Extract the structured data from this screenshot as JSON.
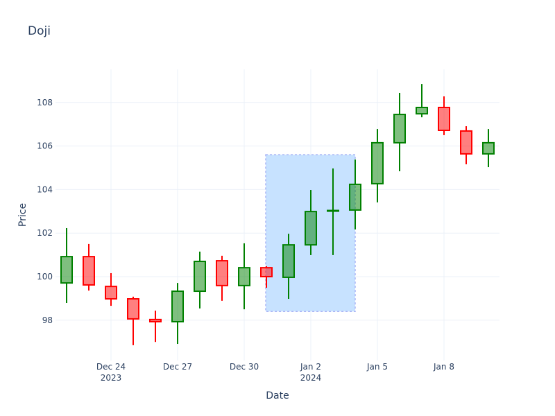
{
  "chart_data": {
    "type": "candlestick",
    "title": "Doji",
    "xlabel": "Date",
    "ylabel": "Price",
    "ylim": [
      96.4,
      109.6
    ],
    "yticks": [
      98,
      100,
      102,
      104,
      106,
      108
    ],
    "xticks": [
      {
        "date": "2023-12-24",
        "label": "Dec 24",
        "sublabel": "2023"
      },
      {
        "date": "2023-12-27",
        "label": "Dec 27",
        "sublabel": ""
      },
      {
        "date": "2023-12-30",
        "label": "Dec 30",
        "sublabel": ""
      },
      {
        "date": "2024-01-02",
        "label": "Jan 2",
        "sublabel": "2024"
      },
      {
        "date": "2024-01-05",
        "label": "Jan 5",
        "sublabel": ""
      },
      {
        "date": "2024-01-08",
        "label": "Jan 8",
        "sublabel": ""
      }
    ],
    "grid": true,
    "legend": false,
    "increasing_color": "#008000",
    "decreasing_color": "#ff0000",
    "candles": [
      {
        "date": "2023-12-22",
        "open": 99.71,
        "high": 102.23,
        "low": 98.79,
        "close": 100.92
      },
      {
        "date": "2023-12-23",
        "open": 100.92,
        "high": 101.5,
        "low": 99.36,
        "close": 99.62
      },
      {
        "date": "2023-12-24",
        "open": 99.55,
        "high": 100.16,
        "low": 98.66,
        "close": 98.98
      },
      {
        "date": "2023-12-25",
        "open": 98.98,
        "high": 99.08,
        "low": 96.85,
        "close": 98.06
      },
      {
        "date": "2023-12-26",
        "open": 98.03,
        "high": 98.44,
        "low": 97.0,
        "close": 97.93
      },
      {
        "date": "2023-12-27",
        "open": 97.93,
        "high": 99.71,
        "low": 96.91,
        "close": 99.33
      },
      {
        "date": "2023-12-28",
        "open": 99.33,
        "high": 101.15,
        "low": 98.54,
        "close": 100.7
      },
      {
        "date": "2023-12-29",
        "open": 100.73,
        "high": 100.96,
        "low": 98.89,
        "close": 99.59
      },
      {
        "date": "2023-12-30",
        "open": 99.59,
        "high": 101.53,
        "low": 98.5,
        "close": 100.41
      },
      {
        "date": "2023-12-31",
        "open": 100.41,
        "high": 100.48,
        "low": 99.49,
        "close": 100.0
      },
      {
        "date": "2024-01-01",
        "open": 99.97,
        "high": 101.97,
        "low": 98.98,
        "close": 101.46
      },
      {
        "date": "2024-01-02",
        "open": 101.46,
        "high": 103.98,
        "low": 100.99,
        "close": 102.99
      },
      {
        "date": "2024-01-03",
        "open": 103.02,
        "high": 104.97,
        "low": 100.99,
        "close": 103.04
      },
      {
        "date": "2024-01-04",
        "open": 103.06,
        "high": 105.38,
        "low": 102.17,
        "close": 104.24
      },
      {
        "date": "2024-01-05",
        "open": 104.27,
        "high": 106.78,
        "low": 103.41,
        "close": 106.15
      },
      {
        "date": "2024-01-06",
        "open": 106.15,
        "high": 108.44,
        "low": 104.84,
        "close": 107.45
      },
      {
        "date": "2024-01-07",
        "open": 107.48,
        "high": 108.85,
        "low": 107.32,
        "close": 107.77
      },
      {
        "date": "2024-01-08",
        "open": 107.77,
        "high": 108.28,
        "low": 106.5,
        "close": 106.72
      },
      {
        "date": "2024-01-09",
        "open": 106.69,
        "high": 106.91,
        "low": 105.16,
        "close": 105.64
      },
      {
        "date": "2024-01-10",
        "open": 105.64,
        "high": 106.78,
        "low": 105.03,
        "close": 106.15
      }
    ],
    "annotations": [
      {
        "type": "rect",
        "x0": "2023-12-31",
        "x1": "2024-01-04",
        "y0": 98.4,
        "y1": 105.6,
        "fill": "#c7e2ff",
        "border": "#a9b4f5",
        "dash": true
      }
    ]
  }
}
